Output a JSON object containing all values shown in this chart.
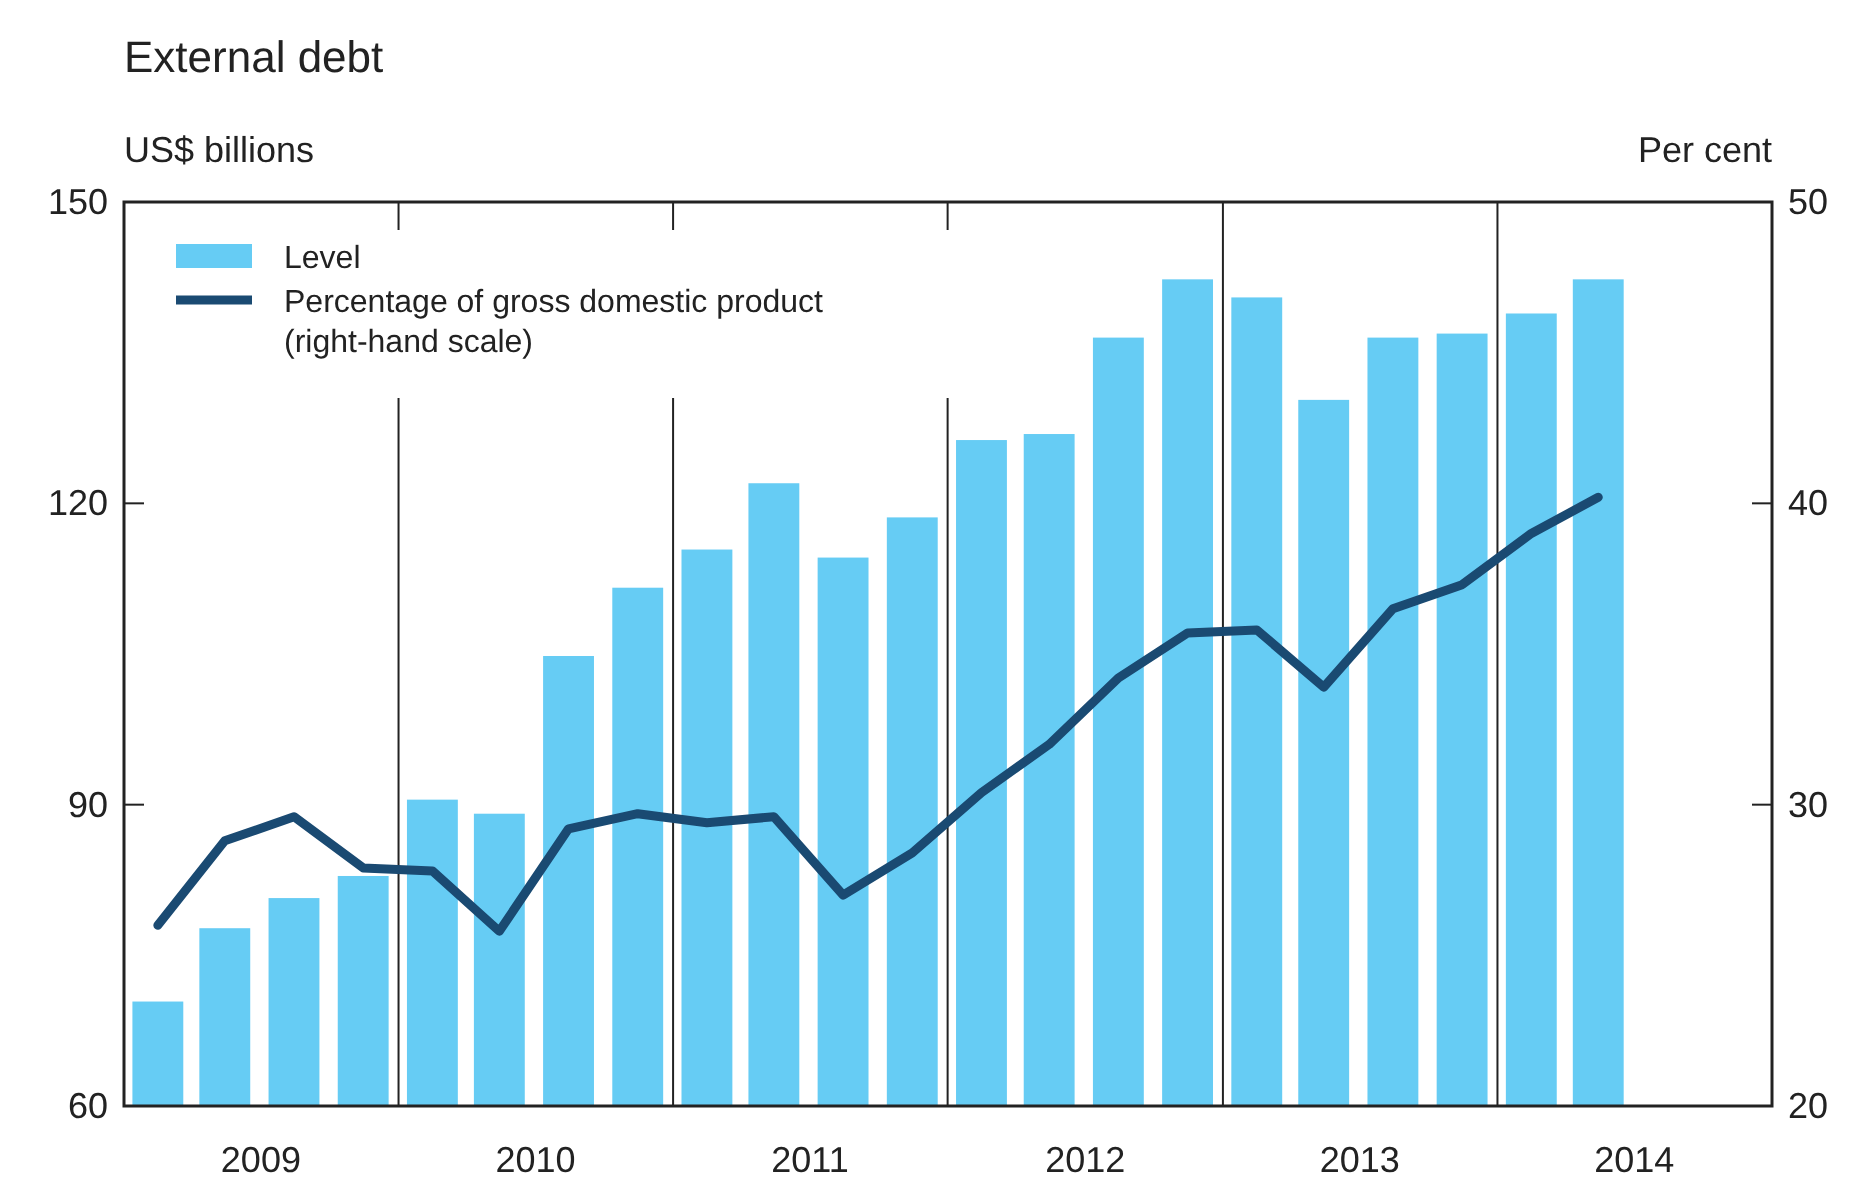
{
  "chart_data": {
    "type": "bar",
    "title": "External debt",
    "ylabel": "US$ billions",
    "y2label": "Per cent",
    "x": [
      "2009-02-15",
      "2009-05-15",
      "2009-08-15",
      "2009-11-15",
      "2010-02-15",
      "2010-05-15",
      "2010-08-15",
      "2010-11-15",
      "2011-02-15",
      "2011-05-15",
      "2011-08-15",
      "2011-11-15",
      "2012-02-15",
      "2012-05-15",
      "2012-08-15",
      "2012-11-15",
      "2013-02-15",
      "2013-05-15",
      "2013-08-15",
      "2013-11-15",
      "2014-02-15",
      "2014-05-15"
    ],
    "series": [
      {
        "name": "Level",
        "color": "#66ccf4",
        "values": [
          70.4,
          77.7,
          80.7,
          82.9,
          90.5,
          89.1,
          104.8,
          111.6,
          115.4,
          122,
          114.6,
          118.6,
          126.3,
          126.9,
          136.5,
          142.3,
          140.5,
          130.3,
          136.5,
          136.9,
          138.9,
          142.3
        ]
      },
      {
        "name": "Percentage of gross domestic product\n(right-hand scale)",
        "type": "line",
        "axis": "y2",
        "color": "#1a4a72",
        "values": [
          26.0,
          28.8,
          29.6,
          27.9,
          27.8,
          25.8,
          29.2,
          29.7,
          29.4,
          29.6,
          27.0,
          28.4,
          30.4,
          32.0,
          34.2,
          35.7,
          35.8,
          33.9,
          36.5,
          37.3,
          39.0,
          40.2
        ]
      }
    ],
    "xlim": [
      "2009-01-01",
      "2015-01-01"
    ],
    "xticks": [
      {
        "value": "2009-07-02",
        "label": "2009"
      },
      {
        "value": "2010-01-01",
        "label": null
      },
      {
        "value": "2010-07-02",
        "label": "2010"
      },
      {
        "value": "2011-01-01",
        "label": null
      },
      {
        "value": "2011-07-02",
        "label": "2011"
      },
      {
        "value": "2012-01-01",
        "label": null
      },
      {
        "value": "2012-07-02",
        "label": "2012"
      },
      {
        "value": "2013-01-01",
        "label": null
      },
      {
        "value": "2013-07-02",
        "label": "2013"
      },
      {
        "value": "2014-01-01",
        "label": null
      },
      {
        "value": "2014-07-02",
        "label": "2014"
      }
    ],
    "ylim": [
      60,
      150
    ],
    "yticks": [
      60,
      90,
      120,
      150
    ],
    "y2lim": [
      20,
      50
    ],
    "y2ticks": [
      20,
      30,
      40,
      50
    ],
    "legend": "top left",
    "grid": "x",
    "line_style": "solid",
    "marker": "none"
  }
}
